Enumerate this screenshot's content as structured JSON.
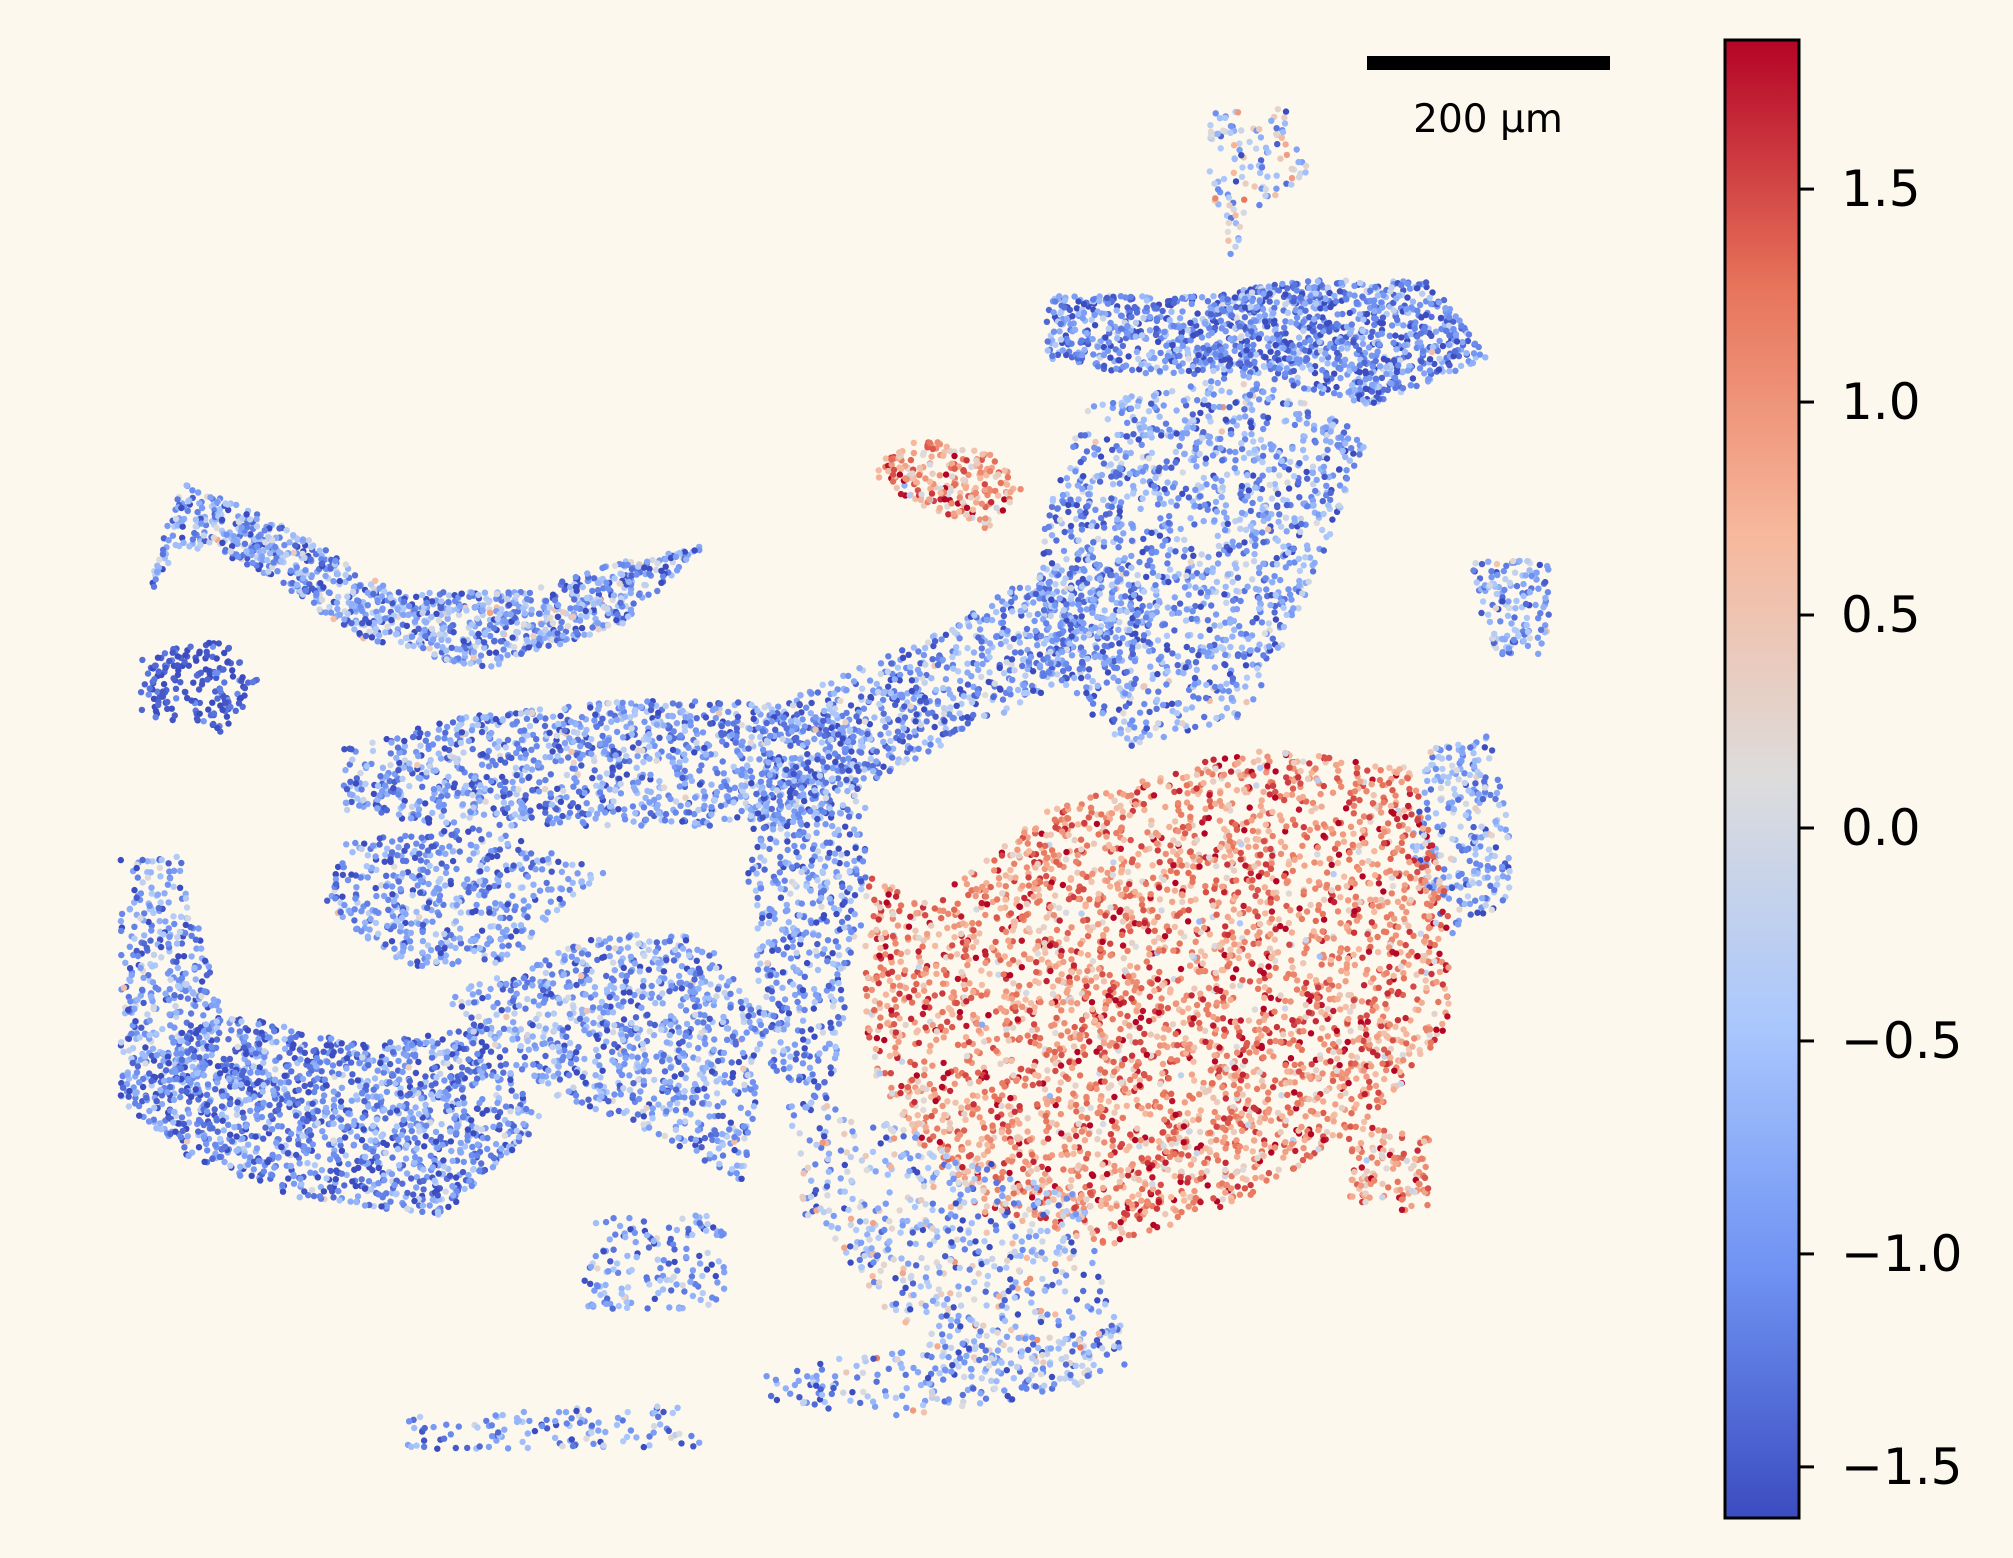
{
  "figure": {
    "background": "#fdf8ee"
  },
  "chart_data": {
    "type": "scatter",
    "title": "",
    "xlabel": "",
    "ylabel": "",
    "grid": false,
    "colormap": "coolwarm",
    "colormap_stops": [
      "#3b4cc0",
      "#6f92f3",
      "#aac7fd",
      "#dddcdc",
      "#f7b89c",
      "#e7745b",
      "#b40426"
    ],
    "colorbar": {
      "range": [
        -1.62,
        1.85
      ],
      "ticks": [
        -1.5,
        -1.0,
        -0.5,
        0.0,
        0.5,
        1.0,
        1.5
      ],
      "tick_labels": [
        "−1.5",
        "−1.0",
        "−0.5",
        "0.0",
        "0.5",
        "1.0",
        "1.5"
      ],
      "placement": "right"
    },
    "scalebar": {
      "label": "200 µm",
      "placement": "top-right"
    },
    "series": [
      {
        "regions": [
          {
            "pts": [
              [
                0.07,
                0.39
              ],
              [
                0.09,
                0.35
              ],
              [
                0.12,
                0.36
              ],
              [
                0.18,
                0.41
              ],
              [
                0.24,
                0.43
              ],
              [
                0.31,
                0.4
              ],
              [
                0.35,
                0.35
              ],
              [
                0.31,
                0.36
              ],
              [
                0.26,
                0.38
              ],
              [
                0.2,
                0.38
              ],
              [
                0.13,
                0.33
              ],
              [
                0.09,
                0.31
              ]
            ],
            "weight": 1100,
            "mean": -0.85,
            "sd": 0.55
          },
          {
            "pts": [
              [
                0.07,
                0.42
              ],
              [
                0.11,
                0.41
              ],
              [
                0.13,
                0.44
              ],
              [
                0.11,
                0.47
              ],
              [
                0.07,
                0.46
              ]
            ],
            "weight": 180,
            "mean": -1.45,
            "sd": 0.2
          },
          {
            "pts": [
              [
                0.43,
                0.3
              ],
              [
                0.45,
                0.32
              ],
              [
                0.49,
                0.34
              ],
              [
                0.51,
                0.31
              ],
              [
                0.49,
                0.29
              ],
              [
                0.46,
                0.28
              ]
            ],
            "weight": 220,
            "mean": 0.9,
            "sd": 0.55
          },
          {
            "pts": [
              [
                0.17,
                0.48
              ],
              [
                0.23,
                0.46
              ],
              [
                0.31,
                0.45
              ],
              [
                0.39,
                0.45
              ],
              [
                0.46,
                0.41
              ],
              [
                0.54,
                0.35
              ],
              [
                0.58,
                0.4
              ],
              [
                0.51,
                0.45
              ],
              [
                0.45,
                0.49
              ],
              [
                0.39,
                0.53
              ],
              [
                0.3,
                0.53
              ],
              [
                0.22,
                0.53
              ],
              [
                0.17,
                0.52
              ]
            ],
            "weight": 1900,
            "mean": -0.95,
            "sd": 0.5
          },
          {
            "pts": [
              [
                0.17,
                0.54
              ],
              [
                0.24,
                0.53
              ],
              [
                0.3,
                0.56
              ],
              [
                0.25,
                0.62
              ],
              [
                0.2,
                0.62
              ],
              [
                0.16,
                0.58
              ]
            ],
            "weight": 500,
            "mean": -1.0,
            "sd": 0.45
          },
          {
            "pts": [
              [
                0.52,
                0.19
              ],
              [
                0.59,
                0.19
              ],
              [
                0.65,
                0.18
              ],
              [
                0.71,
                0.18
              ],
              [
                0.74,
                0.23
              ],
              [
                0.68,
                0.26
              ],
              [
                0.62,
                0.24
              ],
              [
                0.56,
                0.24
              ],
              [
                0.52,
                0.23
              ]
            ],
            "weight": 1300,
            "mean": -1.1,
            "sd": 0.45
          },
          {
            "pts": [
              [
                0.54,
                0.26
              ],
              [
                0.62,
                0.24
              ],
              [
                0.68,
                0.28
              ],
              [
                0.65,
                0.38
              ],
              [
                0.62,
                0.46
              ],
              [
                0.56,
                0.48
              ],
              [
                0.51,
                0.42
              ],
              [
                0.52,
                0.33
              ]
            ],
            "weight": 1400,
            "mean": -0.9,
            "sd": 0.5
          },
          {
            "pts": [
              [
                0.6,
                0.07
              ],
              [
                0.64,
                0.07
              ],
              [
                0.65,
                0.11
              ],
              [
                0.62,
                0.14
              ],
              [
                0.61,
                0.17
              ],
              [
                0.6,
                0.11
              ]
            ],
            "weight": 120,
            "mean": -0.3,
            "sd": 0.7
          },
          {
            "pts": [
              [
                0.71,
                0.48
              ],
              [
                0.74,
                0.47
              ],
              [
                0.75,
                0.53
              ],
              [
                0.75,
                0.58
              ],
              [
                0.72,
                0.6
              ],
              [
                0.7,
                0.55
              ]
            ],
            "weight": 260,
            "mean": -0.8,
            "sd": 0.5
          },
          {
            "pts": [
              [
                0.73,
                0.36
              ],
              [
                0.77,
                0.36
              ],
              [
                0.77,
                0.42
              ],
              [
                0.74,
                0.42
              ]
            ],
            "weight": 140,
            "mean": -0.8,
            "sd": 0.5
          },
          {
            "pts": [
              [
                0.06,
                0.55
              ],
              [
                0.09,
                0.55
              ],
              [
                0.11,
                0.65
              ],
              [
                0.1,
                0.7
              ],
              [
                0.06,
                0.69
              ]
            ],
            "weight": 350,
            "mean": -0.9,
            "sd": 0.5
          },
          {
            "pts": [
              [
                0.06,
                0.69
              ],
              [
                0.11,
                0.65
              ],
              [
                0.18,
                0.67
              ],
              [
                0.24,
                0.66
              ],
              [
                0.27,
                0.72
              ],
              [
                0.22,
                0.78
              ],
              [
                0.15,
                0.77
              ],
              [
                0.09,
                0.74
              ],
              [
                0.06,
                0.71
              ]
            ],
            "weight": 1500,
            "mean": -1.1,
            "sd": 0.45
          },
          {
            "pts": [
              [
                0.22,
                0.64
              ],
              [
                0.3,
                0.6
              ],
              [
                0.35,
                0.6
              ],
              [
                0.38,
                0.66
              ],
              [
                0.37,
                0.76
              ],
              [
                0.33,
                0.73
              ],
              [
                0.27,
                0.7
              ]
            ],
            "weight": 900,
            "mean": -0.95,
            "sd": 0.5
          },
          {
            "pts": [
              [
                0.38,
                0.45
              ],
              [
                0.43,
                0.47
              ],
              [
                0.43,
                0.58
              ],
              [
                0.41,
                0.72
              ],
              [
                0.38,
                0.68
              ],
              [
                0.37,
                0.58
              ]
            ],
            "weight": 650,
            "mean": -1.0,
            "sd": 0.5
          },
          {
            "pts": [
              [
                0.43,
                0.56
              ],
              [
                0.46,
                0.58
              ],
              [
                0.52,
                0.52
              ],
              [
                0.57,
                0.5
              ],
              [
                0.62,
                0.48
              ],
              [
                0.7,
                0.49
              ],
              [
                0.72,
                0.58
              ],
              [
                0.72,
                0.66
              ],
              [
                0.68,
                0.72
              ],
              [
                0.62,
                0.77
              ],
              [
                0.55,
                0.8
              ],
              [
                0.49,
                0.78
              ],
              [
                0.46,
                0.74
              ],
              [
                0.43,
                0.68
              ]
            ],
            "weight": 3600,
            "mean": 1.05,
            "sd": 0.5
          },
          {
            "pts": [
              [
                0.39,
                0.7
              ],
              [
                0.46,
                0.73
              ],
              [
                0.54,
                0.77
              ],
              [
                0.56,
                0.88
              ],
              [
                0.49,
                0.89
              ],
              [
                0.44,
                0.84
              ],
              [
                0.4,
                0.78
              ]
            ],
            "weight": 600,
            "mean": -0.6,
            "sd": 0.7
          },
          {
            "pts": [
              [
                0.38,
                0.88
              ],
              [
                0.47,
                0.86
              ],
              [
                0.56,
                0.85
              ],
              [
                0.54,
                0.89
              ],
              [
                0.45,
                0.91
              ],
              [
                0.38,
                0.9
              ]
            ],
            "weight": 220,
            "mean": -0.7,
            "sd": 0.6
          },
          {
            "pts": [
              [
                0.29,
                0.78
              ],
              [
                0.36,
                0.78
              ],
              [
                0.36,
                0.84
              ],
              [
                0.29,
                0.84
              ]
            ],
            "weight": 150,
            "mean": -0.9,
            "sd": 0.5
          },
          {
            "pts": [
              [
                0.2,
                0.91
              ],
              [
                0.34,
                0.9
              ],
              [
                0.35,
                0.93
              ],
              [
                0.2,
                0.93
              ]
            ],
            "weight": 120,
            "mean": -0.9,
            "sd": 0.5
          },
          {
            "pts": [
              [
                0.67,
                0.72
              ],
              [
                0.71,
                0.73
              ],
              [
                0.71,
                0.78
              ],
              [
                0.67,
                0.77
              ]
            ],
            "weight": 120,
            "mean": 1.0,
            "sd": 0.5
          }
        ]
      }
    ]
  }
}
